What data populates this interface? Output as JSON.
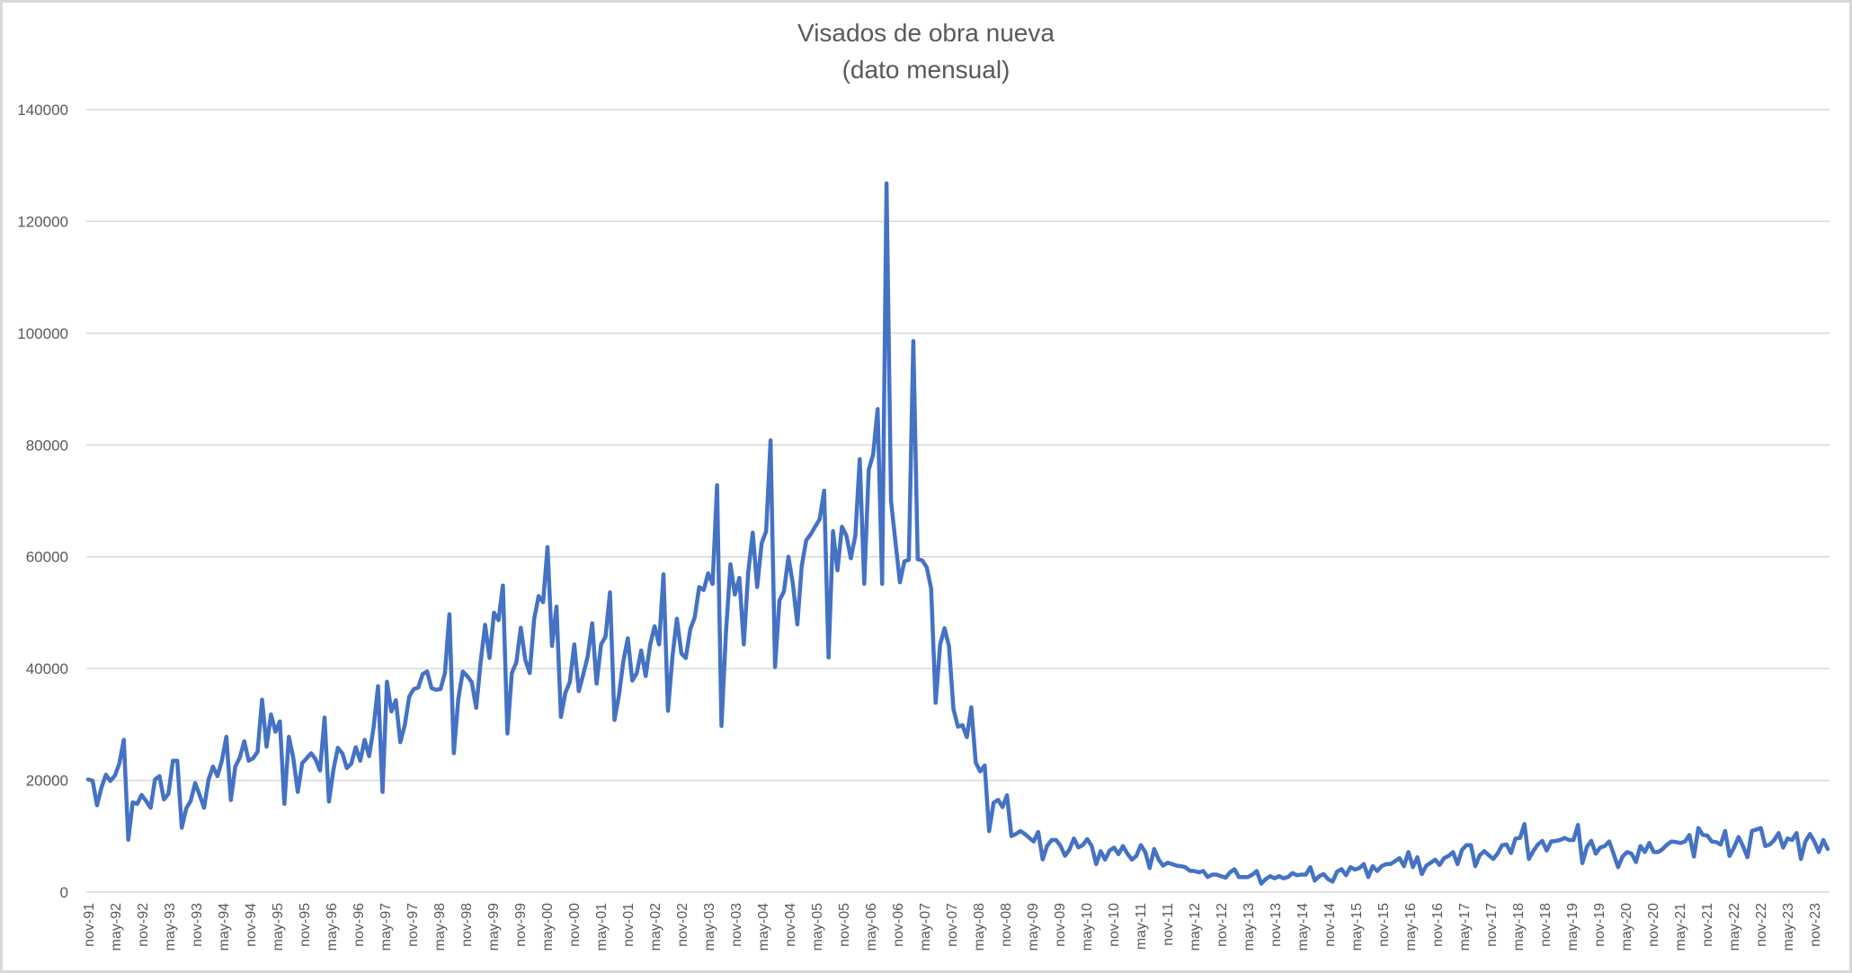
{
  "chart_data": {
    "type": "line",
    "title": "Visados de obra nueva",
    "subtitle": "(dato mensual)",
    "xlabel": "",
    "ylabel": "",
    "ylim": [
      0,
      140000
    ],
    "yticks": [
      0,
      20000,
      40000,
      60000,
      80000,
      100000,
      120000,
      140000
    ],
    "grid": true,
    "legend": "none",
    "line_color": "#4472C4",
    "x_start": "nov-91",
    "x_frequency": "monthly",
    "x_tick_labels": [
      "nov-91",
      "may-92",
      "nov-92",
      "may-93",
      "nov-93",
      "may-94",
      "nov-94",
      "may-95",
      "nov-95",
      "may-96",
      "nov-96",
      "may-97",
      "nov-97",
      "may-98",
      "nov-98",
      "may-99",
      "nov-99",
      "may-00",
      "nov-00",
      "may-01",
      "nov-01",
      "may-02",
      "nov-02",
      "may-03",
      "nov-03",
      "may-04",
      "nov-04",
      "may-05",
      "nov-05",
      "may-06",
      "nov-06",
      "may-07",
      "nov-07",
      "may-08",
      "nov-08",
      "may-09",
      "nov-09",
      "may-10",
      "nov-10",
      "may-11",
      "nov-11",
      "may-12",
      "nov-12",
      "may-13",
      "nov-13",
      "may-14",
      "nov-14",
      "may-15",
      "nov-15",
      "may-16",
      "nov-16",
      "may-17",
      "nov-17",
      "may-18",
      "nov-18",
      "may-19",
      "nov-19",
      "may-20",
      "nov-20",
      "may-21",
      "nov-21",
      "may-22",
      "nov-22",
      "may-23",
      "nov-23"
    ],
    "series": [
      {
        "name": "Visados de obra nueva",
        "values": [
          20160,
          19950,
          15520,
          18720,
          21010,
          19890,
          20850,
          22990,
          27250,
          9390,
          16050,
          15790,
          17390,
          16320,
          15090,
          20160,
          20750,
          16590,
          17550,
          23520,
          23520,
          11520,
          14990,
          16320,
          19520,
          17390,
          15090,
          20160,
          22450,
          20750,
          23520,
          27790,
          16480,
          22450,
          24050,
          26990,
          23520,
          23950,
          25120,
          34450,
          26030,
          31790,
          28690,
          30560,
          15790,
          27790,
          24050,
          17920,
          23090,
          23950,
          24850,
          23790,
          21760,
          31250,
          16210,
          21920,
          25810,
          24850,
          22190,
          22990,
          25920,
          23520,
          27250,
          24320,
          29390,
          36850,
          17920,
          37650,
          32320,
          34350,
          26830,
          29920,
          34990,
          36320,
          36590,
          38990,
          39500,
          36500,
          36220,
          36320,
          39190,
          49730,
          24860,
          34590,
          39460,
          38650,
          37570,
          32970,
          41080,
          47840,
          41890,
          50000,
          48650,
          54860,
          28380,
          39190,
          41080,
          47300,
          41620,
          39190,
          48920,
          52970,
          51890,
          61730,
          44050,
          51080,
          31350,
          35680,
          37570,
          44320,
          35950,
          38920,
          42160,
          48110,
          37300,
          44320,
          45680,
          53620,
          30810,
          35140,
          41350,
          45410,
          37840,
          39190,
          43240,
          38650,
          44320,
          47570,
          44320,
          56860,
          32430,
          42160,
          48920,
          42700,
          41890,
          47030,
          49190,
          54590,
          54050,
          57030,
          55140,
          72800,
          29730,
          46490,
          58650,
          53240,
          56220,
          44320,
          57300,
          64320,
          54590,
          62430,
          64590,
          80800,
          40270,
          52200,
          53820,
          60000,
          55160,
          47900,
          58390,
          62960,
          64030,
          65380,
          66720,
          71830,
          41990,
          64570,
          57580,
          65380,
          63760,
          59730,
          63760,
          77470,
          55160,
          75590,
          78280,
          86450,
          55160,
          126800,
          69950,
          62690,
          55430,
          59190,
          59460,
          98600,
          59570,
          59350,
          58120,
          54350,
          33870,
          44270,
          47200,
          44000,
          32800,
          29600,
          29870,
          27730,
          33070,
          23200,
          21600,
          22670,
          10930,
          16000,
          16530,
          15200,
          17330,
          10030,
          10400,
          10930,
          10400,
          9710,
          9070,
          10770,
          5870,
          8270,
          9330,
          9330,
          8270,
          6510,
          7580,
          9600,
          8000,
          8430,
          9490,
          8270,
          5010,
          7330,
          5820,
          7440,
          7980,
          6790,
          8250,
          6900,
          5820,
          6470,
          8410,
          7170,
          4310,
          7710,
          5820,
          4740,
          5280,
          5010,
          4740,
          4640,
          4470,
          3830,
          3770,
          3560,
          3770,
          2700,
          3130,
          3130,
          2860,
          2590,
          3560,
          4100,
          2700,
          2700,
          2700,
          3130,
          3770,
          1510,
          2320,
          2860,
          2480,
          2860,
          2480,
          2700,
          3400,
          3020,
          3130,
          3130,
          4470,
          2050,
          2860,
          3230,
          2320,
          1890,
          3670,
          4100,
          3020,
          4470,
          4040,
          4310,
          5010,
          2700,
          4640,
          3770,
          4640,
          5010,
          5010,
          5550,
          6090,
          4640,
          7170,
          4470,
          6250,
          3230,
          4740,
          5280,
          5820,
          4850,
          6090,
          6470,
          7170,
          5010,
          7550,
          8410,
          8410,
          4640,
          6630,
          7330,
          6630,
          5930,
          6900,
          8410,
          8520,
          7010,
          9600,
          9700,
          12180,
          5930,
          7330,
          8520,
          9160,
          7440,
          9060,
          9160,
          9330,
          9700,
          9330,
          9330,
          12020,
          5170,
          8090,
          9160,
          6900,
          7980,
          8250,
          9060,
          6900,
          4470,
          6360,
          7170,
          6900,
          5390,
          8250,
          7170,
          8790,
          7170,
          7170,
          7710,
          8520,
          9060,
          8950,
          8790,
          9060,
          10240,
          6360,
          11480,
          10240,
          10130,
          9060,
          8950,
          8520,
          10940,
          6470,
          7980,
          9870,
          8250,
          6250,
          10940,
          11210,
          11480,
          8250,
          8520,
          9330,
          10570,
          7980,
          9600,
          9330,
          10570,
          5930,
          9060,
          10400,
          9060,
          7170,
          9330,
          7710
        ]
      }
    ]
  }
}
